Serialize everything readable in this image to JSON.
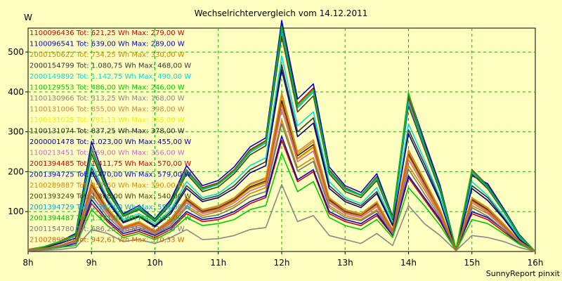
{
  "chart_data": {
    "type": "line",
    "title": "Wechselrichtervergleich vom 14.12.2011",
    "ylabel": "W",
    "xlabel": "",
    "footer": "SunnyReport pinxit",
    "ylim": [
      0,
      560
    ],
    "xlim": [
      8,
      16
    ],
    "grid": true,
    "y_ticks": [
      {
        "value": 100,
        "label": "100"
      },
      {
        "value": 200,
        "label": "200"
      },
      {
        "value": 300,
        "label": "300"
      },
      {
        "value": 400,
        "label": "400"
      },
      {
        "value": 500,
        "label": "500"
      }
    ],
    "x_ticks": [
      {
        "value": 8,
        "label": "8h"
      },
      {
        "value": 9,
        "label": "9h"
      },
      {
        "value": 10,
        "label": "10h"
      },
      {
        "value": 11,
        "label": "11h"
      },
      {
        "value": 12,
        "label": "12h"
      },
      {
        "value": 13,
        "label": "13h"
      },
      {
        "value": 14,
        "label": "14h"
      },
      {
        "value": 15,
        "label": "15h"
      },
      {
        "value": 16,
        "label": "16h"
      }
    ],
    "legend_position": "top-left inside",
    "x": [
      8.0,
      8.25,
      8.5,
      8.75,
      9.0,
      9.25,
      9.5,
      9.75,
      10.0,
      10.25,
      10.5,
      10.75,
      11.0,
      11.25,
      11.5,
      11.75,
      12.0,
      12.25,
      12.5,
      12.75,
      13.0,
      13.25,
      13.5,
      13.75,
      14.0,
      14.25,
      14.5,
      14.75,
      15.0,
      15.25,
      15.5,
      15.75,
      16.0
    ],
    "series": [
      {
        "name": "1100096436",
        "legend": "1100096436 Tot: 621,25 Wh Max: 279,00 W",
        "color": "#cc0000",
        "values": [
          5,
          5,
          10,
          20,
          120,
          75,
          40,
          50,
          35,
          55,
          95,
          75,
          80,
          95,
          120,
          135,
          279,
          175,
          200,
          95,
          75,
          65,
          90,
          40,
          185,
          130,
          75,
          3,
          95,
          80,
          50,
          20,
          0
        ]
      },
      {
        "name": "1100096541",
        "legend": "1100096541 Tot: 639,00 Wh Max: 289,00 W",
        "color": "#0000cc",
        "values": [
          5,
          5,
          10,
          20,
          130,
          80,
          45,
          55,
          40,
          60,
          100,
          80,
          85,
          100,
          125,
          140,
          289,
          180,
          205,
          100,
          80,
          70,
          95,
          42,
          190,
          135,
          80,
          3,
          100,
          85,
          55,
          20,
          0
        ]
      },
      {
        "name": "2000150622",
        "legend": "2000150622 Tot: 734,25 Wh Max: 330,00 W",
        "color": "#cc8800",
        "values": [
          5,
          5,
          15,
          25,
          150,
          95,
          55,
          65,
          45,
          70,
          115,
          90,
          100,
          115,
          145,
          160,
          330,
          210,
          235,
          115,
          90,
          80,
          105,
          48,
          215,
          155,
          90,
          3,
          115,
          95,
          60,
          22,
          0
        ]
      },
      {
        "name": "2000154799",
        "legend": "2000154799 Tot: 1.080,75 Wh Max: 468,00 W",
        "color": "#333333",
        "values": [
          5,
          10,
          20,
          35,
          210,
          130,
          75,
          90,
          65,
          100,
          165,
          130,
          140,
          165,
          205,
          225,
          468,
          300,
          335,
          165,
          130,
          115,
          150,
          68,
          305,
          220,
          130,
          4,
          165,
          135,
          85,
          32,
          0
        ]
      },
      {
        "name": "2000149892",
        "legend": "2000149892 Tot: 1.142,75 Wh Max: 490,00 W",
        "color": "#00dddd",
        "values": [
          5,
          10,
          20,
          35,
          220,
          135,
          80,
          95,
          70,
          105,
          175,
          135,
          145,
          175,
          215,
          235,
          490,
          315,
          350,
          175,
          135,
          120,
          160,
          72,
          320,
          230,
          135,
          4,
          175,
          140,
          90,
          35,
          0
        ]
      },
      {
        "name": "1100129553",
        "legend": "1100129553 Tot: 486,00 Wh Max: 246,00 W",
        "color": "#00cc00",
        "values": [
          5,
          5,
          10,
          15,
          105,
          65,
          35,
          45,
          30,
          50,
          85,
          65,
          70,
          80,
          105,
          115,
          246,
          150,
          175,
          85,
          65,
          55,
          80,
          35,
          160,
          115,
          65,
          2,
          80,
          70,
          45,
          18,
          0
        ]
      },
      {
        "name": "1100130966",
        "legend": "1100130966 Tot: 313,25 Wh Max: 168,00 W",
        "color": "#888888",
        "values": [
          2,
          3,
          5,
          10,
          55,
          45,
          25,
          30,
          20,
          35,
          55,
          30,
          32,
          40,
          55,
          60,
          168,
          75,
          90,
          40,
          30,
          20,
          45,
          15,
          115,
          70,
          40,
          2,
          40,
          35,
          25,
          10,
          0
        ]
      },
      {
        "name": "1100131006",
        "legend": "1100131006 Tot: 855,00 Wh Max: 398,00 W",
        "color": "#cc8844",
        "values": [
          5,
          8,
          15,
          28,
          175,
          110,
          62,
          75,
          52,
          82,
          135,
          105,
          115,
          135,
          170,
          185,
          398,
          250,
          280,
          135,
          105,
          95,
          125,
          55,
          255,
          180,
          105,
          3,
          135,
          110,
          70,
          27,
          0
        ]
      },
      {
        "name": "1100131025",
        "legend": "1100131025 Tot: 781,13 Wh Max: 365,00 W",
        "color": "#eeee00",
        "values": [
          5,
          7,
          14,
          26,
          160,
          100,
          57,
          70,
          48,
          75,
          125,
          97,
          105,
          125,
          157,
          170,
          365,
          230,
          258,
          125,
          97,
          88,
          115,
          50,
          235,
          165,
          97,
          3,
          125,
          100,
          65,
          25,
          0
        ]
      },
      {
        "name": "1100131074",
        "legend": "1100131074 Tot: 837,25 Wh Max: 378,00 W",
        "color": "#222222",
        "values": [
          5,
          8,
          15,
          28,
          168,
          105,
          60,
          72,
          50,
          78,
          130,
          100,
          110,
          130,
          162,
          177,
          378,
          240,
          268,
          130,
          100,
          90,
          120,
          52,
          245,
          172,
          100,
          3,
          130,
          105,
          67,
          26,
          0
        ]
      },
      {
        "name": "2000001478",
        "legend": "2000001478 Tot: 1.023,00 Wh Max: 455,00 W",
        "color": "#000088",
        "values": [
          5,
          10,
          20,
          33,
          200,
          125,
          72,
          87,
          62,
          95,
          158,
          125,
          135,
          158,
          197,
          215,
          455,
          288,
          322,
          158,
          125,
          110,
          145,
          65,
          295,
          210,
          125,
          4,
          158,
          128,
          82,
          30,
          0
        ]
      },
      {
        "name": "1100213451",
        "legend": "1100213451 Tot: 769,00 Wh Max: 356,00 W",
        "color": "#cc66cc",
        "values": [
          5,
          7,
          14,
          25,
          155,
          98,
          55,
          67,
          47,
          73,
          122,
          95,
          103,
          122,
          152,
          167,
          356,
          225,
          252,
          122,
          95,
          85,
          112,
          49,
          230,
          162,
          95,
          3,
          122,
          98,
          63,
          24,
          0
        ]
      },
      {
        "name": "2001394485",
        "legend": "2001394485 Tot: 1.411,75 Wh Max: 570,00 W",
        "color": "#cc0000",
        "values": [
          5,
          12,
          25,
          42,
          260,
          160,
          92,
          110,
          80,
          125,
          205,
          160,
          172,
          205,
          255,
          278,
          570,
          370,
          410,
          205,
          160,
          142,
          188,
          85,
          385,
          270,
          160,
          5,
          205,
          165,
          105,
          40,
          0
        ]
      },
      {
        "name": "2001394725",
        "legend": "2001394725 Tot: 1.470,00 Wh Max: 579,00 W",
        "color": "#0000dd",
        "values": [
          5,
          12,
          25,
          45,
          275,
          165,
          95,
          115,
          82,
          130,
          215,
          165,
          178,
          212,
          262,
          285,
          579,
          382,
          420,
          212,
          165,
          148,
          195,
          88,
          395,
          278,
          165,
          5,
          190,
          170,
          108,
          42,
          0
        ]
      },
      {
        "name": "2100289887",
        "legend": "2100289887 Tot: 857,50 Wh Max: 390,00 W",
        "color": "#dd8800",
        "values": [
          5,
          8,
          15,
          28,
          172,
          108,
          61,
          74,
          51,
          80,
          133,
          103,
          112,
          133,
          167,
          182,
          390,
          245,
          275,
          133,
          103,
          93,
          123,
          54,
          250,
          177,
          103,
          3,
          133,
          108,
          68,
          26,
          0
        ]
      },
      {
        "name": "2001393249",
        "legend": "2001393249 Tot: 1.308,00 Wh Max: 540,00 W",
        "color": "#444400",
        "values": [
          5,
          11,
          23,
          40,
          245,
          150,
          88,
          105,
          75,
          118,
          195,
          150,
          162,
          195,
          242,
          265,
          540,
          350,
          390,
          195,
          150,
          135,
          178,
          80,
          365,
          257,
          150,
          5,
          195,
          157,
          100,
          38,
          0
        ]
      },
      {
        "name": "2001394729",
        "legend": "2001394729 Tot: 1.382,00 Wh Max: 556,00 W",
        "color": "#00aacc",
        "values": [
          5,
          12,
          24,
          41,
          255,
          155,
          90,
          108,
          78,
          122,
          200,
          155,
          168,
          200,
          248,
          272,
          556,
          360,
          400,
          200,
          155,
          140,
          183,
          83,
          375,
          263,
          155,
          5,
          200,
          160,
          102,
          39,
          0
        ]
      },
      {
        "name": "2001394487",
        "legend": "2001394487 Tot: 1.391,00 Wh Max: 565,00 W",
        "color": "#00bb00",
        "values": [
          5,
          12,
          25,
          42,
          258,
          158,
          91,
          110,
          79,
          124,
          203,
          158,
          170,
          203,
          252,
          276,
          565,
          365,
          405,
          203,
          158,
          142,
          186,
          84,
          398,
          267,
          158,
          5,
          203,
          163,
          104,
          40,
          0
        ]
      },
      {
        "name": "2001154780",
        "legend": "2001154780 Tot: 686,25 Wh Max: 320,00 W",
        "color": "#777777",
        "values": [
          4,
          6,
          12,
          22,
          140,
          88,
          50,
          60,
          42,
          65,
          110,
          85,
          92,
          110,
          137,
          150,
          320,
          202,
          226,
          110,
          85,
          77,
          101,
          44,
          206,
          145,
          85,
          3,
          110,
          88,
          56,
          22,
          0
        ]
      },
      {
        "name": "2100289893",
        "legend": "2100289893 Tot: 942,61 Wh Max: 370,33 W",
        "color": "#cc6600",
        "values": [
          5,
          8,
          15,
          27,
          163,
          102,
          58,
          71,
          49,
          76,
          127,
          98,
          107,
          127,
          159,
          173,
          370,
          233,
          262,
          127,
          98,
          89,
          117,
          51,
          240,
          168,
          98,
          3,
          127,
          102,
          65,
          25,
          0
        ]
      }
    ]
  }
}
